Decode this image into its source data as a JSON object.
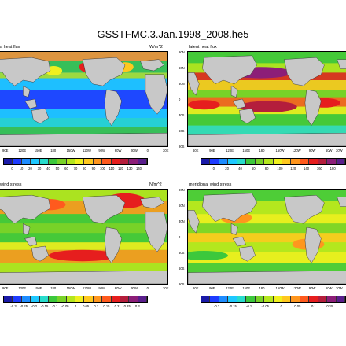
{
  "title": "GSSTFMC.3.Jan.1998_2008.he5",
  "panels": [
    {
      "id": "sensible",
      "label": "a heat flux",
      "unit": "W/m^2",
      "lon_labels": [
        "90E",
        "120E",
        "150E",
        "180",
        "150W",
        "120W",
        "90W",
        "60W",
        "30W",
        "0",
        "30E"
      ],
      "lat_labels": [],
      "colorbar_ticks": [
        "0",
        "10",
        "20",
        "30",
        "40",
        "50",
        "60",
        "70",
        "80",
        "90",
        "100",
        "110",
        "120",
        "130",
        "140"
      ]
    },
    {
      "id": "latent",
      "label": "latent heat flux",
      "unit": "",
      "lon_labels": [
        "60E",
        "90E",
        "120E",
        "150E",
        "180",
        "150W",
        "120W",
        "90W",
        "60W",
        "30W"
      ],
      "lat_labels": [
        "90N",
        "60N",
        "30N",
        "0",
        "30S",
        "60S",
        "90S"
      ],
      "colorbar_ticks": [
        "0",
        "20",
        "40",
        "60",
        "80",
        "100",
        "120",
        "140",
        "160",
        "180"
      ]
    },
    {
      "id": "zonal",
      "label": "wind stress",
      "unit": "N/m^2",
      "lon_labels": [
        "90E",
        "120E",
        "150E",
        "180",
        "150W",
        "120W",
        "90W",
        "60W",
        "30W",
        "0",
        "30E"
      ],
      "lat_labels": [],
      "colorbar_ticks": [
        "-0.3",
        "-0.25",
        "-0.2",
        "-0.15",
        "-0.1",
        "-0.05",
        "0",
        "0.05",
        "0.1",
        "0.15",
        "0.2",
        "0.25",
        "0.3"
      ]
    },
    {
      "id": "meridional",
      "label": "meridional wind stress",
      "unit": "",
      "lon_labels": [
        "60E",
        "90E",
        "120E",
        "150E",
        "180",
        "150W",
        "120W",
        "90W",
        "60W",
        "30W"
      ],
      "lat_labels": [
        "90N",
        "60N",
        "30N",
        "0",
        "30S",
        "60S",
        "90S"
      ],
      "colorbar_ticks": [
        "-0.2",
        "-0.15",
        "-0.1",
        "-0.05",
        "0",
        "0.05",
        "0.1",
        "0.15"
      ]
    }
  ],
  "colors": {
    "land": "#c8c8c8",
    "palette": [
      "#1a1aa8",
      "#1e3cff",
      "#1e8cff",
      "#1ec8ff",
      "#28dccc",
      "#3cc83c",
      "#78d228",
      "#b4e61e",
      "#f0f01e",
      "#ffc81e",
      "#ff961e",
      "#ff5a1e",
      "#e61e1e",
      "#b41e3c",
      "#8c1e78",
      "#5a1e8c"
    ]
  }
}
